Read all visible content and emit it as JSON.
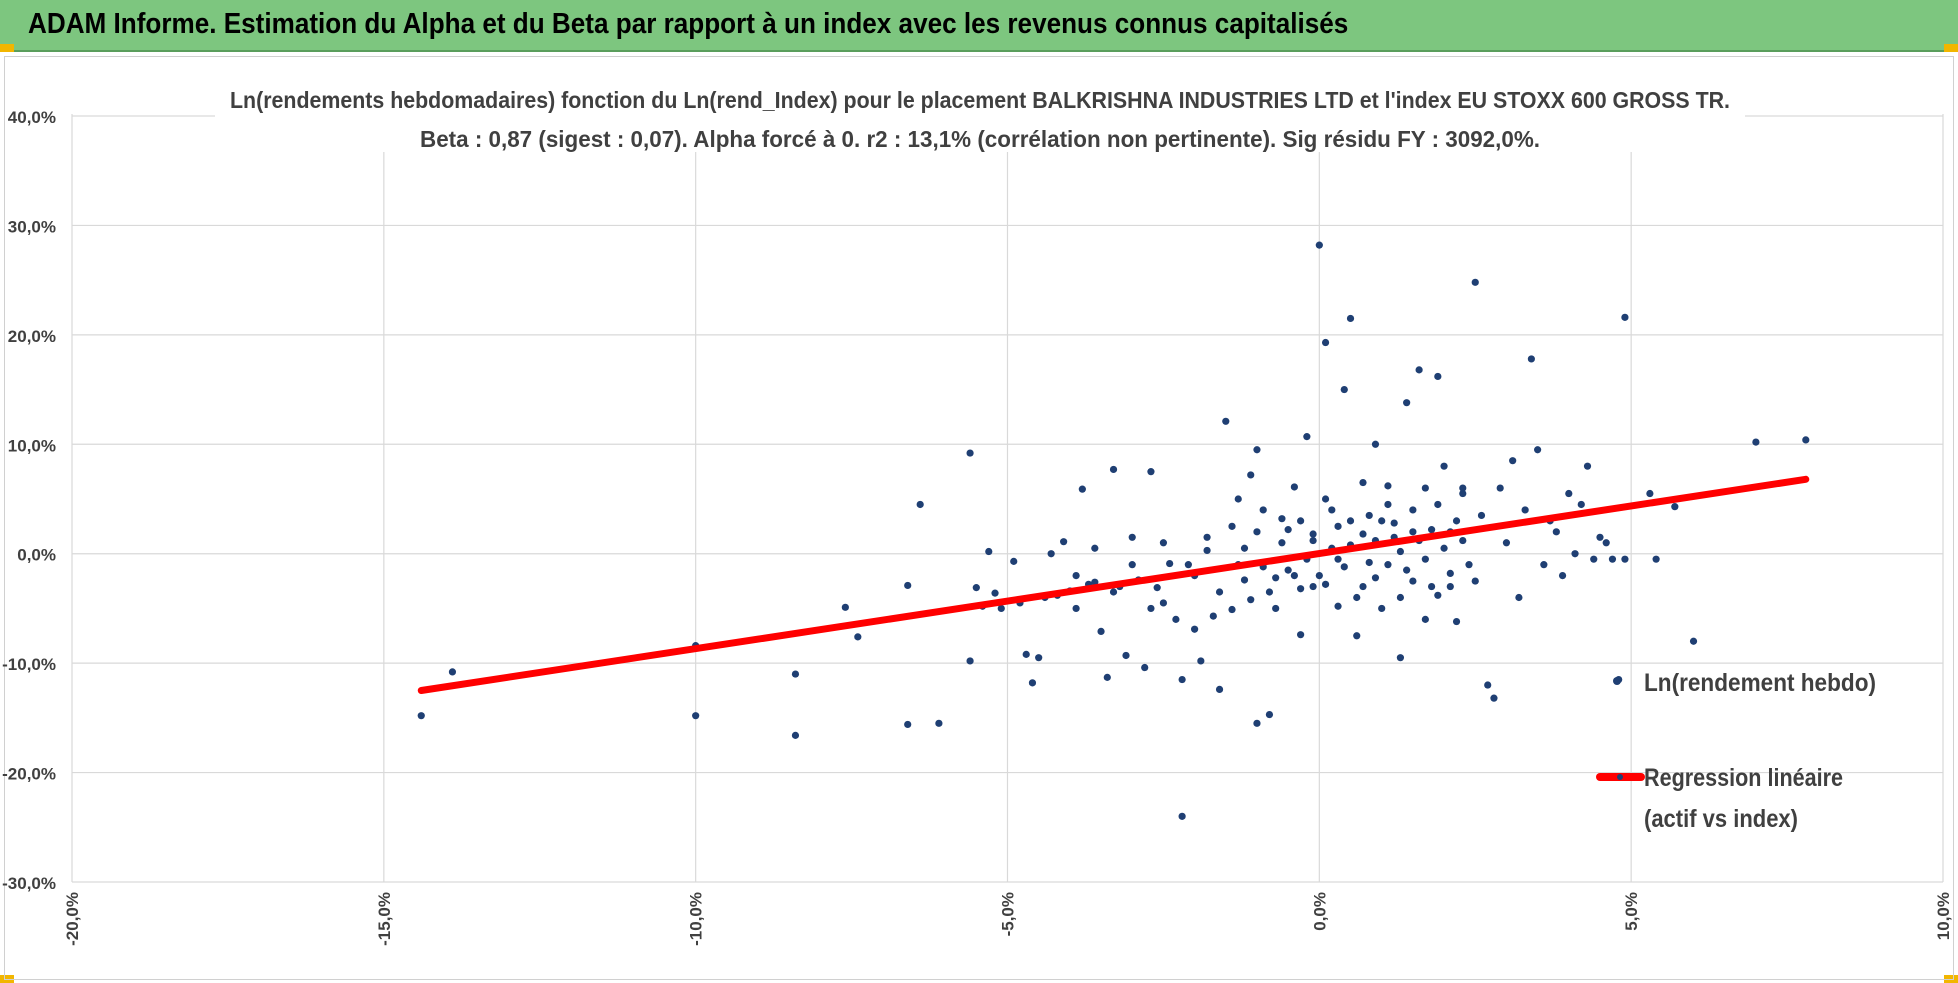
{
  "header": {
    "title": "ADAM Informe. Estimation du Alpha et du Beta par rapport à un index avec les revenus connus capitalisés"
  },
  "colors": {
    "banner": "#7dc67f",
    "points": "#1f3f73",
    "regression": "#ff0000",
    "grid": "#d9d9d9",
    "corner_marker": "#f2b600"
  },
  "chart_data": {
    "type": "scatter",
    "title_line1": "Ln(rendements hebdomadaires) fonction du Ln(rend_Index) pour le placement BALKRISHNA INDUSTRIES LTD et l'index EU STOXX 600 GROSS TR.",
    "title_line2": "Beta : 0,87 (sigest : 0,07). Alpha forcé à 0. r2 : 13,1% (corrélation non pertinente). Sig résidu FY : 3092,0%.",
    "xlim": [
      -0.2,
      0.1
    ],
    "ylim": [
      -0.3,
      0.4
    ],
    "x_ticks": [
      "-20,0%",
      "-15,0%",
      "-10,0%",
      "-5,0%",
      "0,0%",
      "5,0%",
      "10,0%"
    ],
    "y_ticks": [
      "40,0%",
      "30,0%",
      "20,0%",
      "10,0%",
      "0,0%",
      "-10,0%",
      "-20,0%",
      "-30,0%"
    ],
    "grid": true,
    "legend_position": "right",
    "series": [
      {
        "name": "Ln(rendement hebdo)",
        "kind": "scatter",
        "points": [
          [
            -0.144,
            -0.148
          ],
          [
            -0.139,
            -0.108
          ],
          [
            -0.1,
            -0.084
          ],
          [
            -0.1,
            -0.148
          ],
          [
            -0.084,
            -0.11
          ],
          [
            -0.084,
            -0.166
          ],
          [
            -0.076,
            -0.049
          ],
          [
            -0.074,
            -0.076
          ],
          [
            -0.066,
            -0.156
          ],
          [
            -0.066,
            -0.029
          ],
          [
            -0.064,
            0.045
          ],
          [
            -0.061,
            -0.155
          ],
          [
            -0.056,
            0.092
          ],
          [
            -0.056,
            -0.098
          ],
          [
            -0.055,
            -0.031
          ],
          [
            -0.054,
            -0.048
          ],
          [
            -0.053,
            0.002
          ],
          [
            -0.052,
            -0.036
          ],
          [
            -0.051,
            -0.05
          ],
          [
            -0.049,
            -0.007
          ],
          [
            -0.048,
            -0.045
          ],
          [
            -0.047,
            -0.092
          ],
          [
            -0.046,
            -0.118
          ],
          [
            -0.045,
            -0.095
          ],
          [
            -0.044,
            -0.04
          ],
          [
            -0.043,
            0.0
          ],
          [
            -0.042,
            -0.038
          ],
          [
            -0.041,
            0.011
          ],
          [
            -0.04,
            -0.034
          ],
          [
            -0.039,
            -0.05
          ],
          [
            -0.038,
            0.059
          ],
          [
            -0.037,
            -0.028
          ],
          [
            -0.036,
            -0.026
          ],
          [
            -0.035,
            -0.071
          ],
          [
            -0.034,
            -0.113
          ],
          [
            -0.033,
            0.077
          ],
          [
            -0.032,
            -0.03
          ],
          [
            -0.031,
            -0.093
          ],
          [
            -0.03,
            0.015
          ],
          [
            -0.029,
            -0.024
          ],
          [
            -0.028,
            -0.104
          ],
          [
            -0.027,
            0.075
          ],
          [
            -0.026,
            -0.031
          ],
          [
            -0.025,
            -0.045
          ],
          [
            -0.024,
            -0.009
          ],
          [
            -0.023,
            -0.06
          ],
          [
            -0.022,
            -0.115
          ],
          [
            -0.022,
            -0.24
          ],
          [
            -0.021,
            -0.01
          ],
          [
            -0.02,
            -0.069
          ],
          [
            -0.019,
            -0.098
          ],
          [
            -0.018,
            0.003
          ],
          [
            -0.017,
            -0.057
          ],
          [
            -0.016,
            -0.124
          ],
          [
            -0.015,
            0.121
          ],
          [
            -0.014,
            -0.051
          ],
          [
            -0.013,
            0.05
          ],
          [
            -0.012,
            -0.024
          ],
          [
            -0.011,
            0.072
          ],
          [
            -0.01,
            0.095
          ],
          [
            -0.01,
            -0.155
          ],
          [
            -0.009,
            -0.012
          ],
          [
            -0.008,
            -0.147
          ],
          [
            -0.007,
            -0.05
          ],
          [
            -0.006,
            0.032
          ],
          [
            -0.005,
            -0.015
          ],
          [
            -0.004,
            0.061
          ],
          [
            -0.003,
            -0.074
          ],
          [
            -0.002,
            0.107
          ],
          [
            -0.001,
            -0.03
          ],
          [
            0.0,
            -0.02
          ],
          [
            0.0,
            0.282
          ],
          [
            0.001,
            0.193
          ],
          [
            0.002,
            0.04
          ],
          [
            0.003,
            -0.005
          ],
          [
            0.004,
            0.15
          ],
          [
            0.005,
            0.215
          ],
          [
            0.006,
            -0.075
          ],
          [
            0.007,
            0.065
          ],
          [
            0.008,
            -0.008
          ],
          [
            0.009,
            0.1
          ],
          [
            0.01,
            -0.05
          ],
          [
            0.01,
            0.03
          ],
          [
            0.011,
            0.045
          ],
          [
            0.012,
            0.015
          ],
          [
            0.013,
            -0.095
          ],
          [
            0.014,
            0.138
          ],
          [
            0.015,
            -0.025
          ],
          [
            0.016,
            0.168
          ],
          [
            0.017,
            0.06
          ],
          [
            0.018,
            -0.03
          ],
          [
            0.019,
            0.162
          ],
          [
            0.02,
            0.08
          ],
          [
            0.021,
            0.02
          ],
          [
            0.022,
            -0.062
          ],
          [
            0.023,
            0.055
          ],
          [
            0.024,
            -0.01
          ],
          [
            0.025,
            0.248
          ],
          [
            0.026,
            0.035
          ],
          [
            0.027,
            -0.12
          ],
          [
            0.028,
            -0.132
          ],
          [
            0.029,
            0.06
          ],
          [
            0.03,
            0.01
          ],
          [
            0.031,
            0.085
          ],
          [
            0.032,
            -0.04
          ],
          [
            0.033,
            0.04
          ],
          [
            0.034,
            0.178
          ],
          [
            0.035,
            0.095
          ],
          [
            0.036,
            -0.01
          ],
          [
            0.037,
            0.03
          ],
          [
            0.038,
            0.02
          ],
          [
            0.039,
            -0.02
          ],
          [
            0.04,
            0.055
          ],
          [
            0.041,
            0.0
          ],
          [
            0.042,
            0.045
          ],
          [
            0.043,
            0.08
          ],
          [
            0.044,
            -0.005
          ],
          [
            0.045,
            0.015
          ],
          [
            0.046,
            0.01
          ],
          [
            0.047,
            -0.005
          ],
          [
            0.048,
            -0.115
          ],
          [
            0.049,
            -0.005
          ],
          [
            0.049,
            0.216
          ],
          [
            0.053,
            0.055
          ],
          [
            0.054,
            -0.005
          ],
          [
            0.057,
            0.043
          ],
          [
            0.06,
            -0.08
          ],
          [
            0.07,
            0.102
          ],
          [
            0.078,
            0.104
          ],
          [
            -0.012,
            0.005
          ],
          [
            -0.01,
            0.02
          ],
          [
            -0.008,
            -0.035
          ],
          [
            -0.006,
            0.01
          ],
          [
            -0.004,
            -0.02
          ],
          [
            -0.003,
            0.03
          ],
          [
            -0.002,
            -0.005
          ],
          [
            -0.001,
            0.012
          ],
          [
            0.001,
            -0.028
          ],
          [
            0.002,
            0.005
          ],
          [
            0.003,
            0.025
          ],
          [
            0.004,
            -0.012
          ],
          [
            0.005,
            0.008
          ],
          [
            0.006,
            -0.04
          ],
          [
            0.007,
            0.018
          ],
          [
            0.008,
            0.035
          ],
          [
            0.009,
            -0.022
          ],
          [
            0.011,
            -0.01
          ],
          [
            0.012,
            0.028
          ],
          [
            0.013,
            0.002
          ],
          [
            0.014,
            -0.015
          ],
          [
            0.015,
            0.04
          ],
          [
            0.016,
            0.012
          ],
          [
            0.017,
            -0.005
          ],
          [
            0.018,
            0.022
          ],
          [
            0.019,
            -0.038
          ],
          [
            0.02,
            0.005
          ],
          [
            0.021,
            -0.018
          ],
          [
            0.022,
            0.03
          ],
          [
            0.023,
            0.012
          ],
          [
            -0.02,
            -0.02
          ],
          [
            -0.018,
            0.015
          ],
          [
            -0.016,
            -0.035
          ],
          [
            -0.014,
            0.025
          ],
          [
            -0.013,
            -0.01
          ],
          [
            -0.011,
            -0.042
          ],
          [
            -0.009,
            0.04
          ],
          [
            -0.007,
            -0.022
          ],
          [
            -0.005,
            0.022
          ],
          [
            -0.003,
            -0.032
          ],
          [
            -0.001,
            0.018
          ],
          [
            0.001,
            0.05
          ],
          [
            0.003,
            -0.048
          ],
          [
            0.005,
            0.03
          ],
          [
            0.007,
            -0.03
          ],
          [
            0.009,
            0.012
          ],
          [
            0.011,
            0.062
          ],
          [
            0.013,
            -0.04
          ],
          [
            0.015,
            0.02
          ],
          [
            0.017,
            -0.06
          ],
          [
            0.019,
            0.045
          ],
          [
            0.021,
            -0.03
          ],
          [
            0.023,
            0.06
          ],
          [
            0.025,
            -0.025
          ],
          [
            -0.025,
            0.01
          ],
          [
            -0.027,
            -0.05
          ],
          [
            -0.03,
            -0.01
          ],
          [
            -0.033,
            -0.035
          ],
          [
            -0.036,
            0.005
          ],
          [
            -0.039,
            -0.02
          ]
        ]
      },
      {
        "name": "Regression linéaire (actif vs index)",
        "kind": "line",
        "x": [
          -0.144,
          0.078
        ],
        "y": [
          -0.125,
          0.068
        ]
      }
    ],
    "legend": {
      "scatter_label": "Ln(rendement hebdo)",
      "line_label_1": "Regression linéaire",
      "line_label_2": "(actif vs index)"
    }
  }
}
